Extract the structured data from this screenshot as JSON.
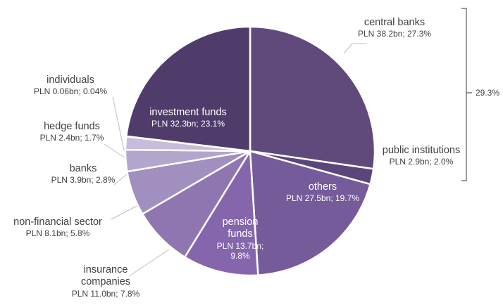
{
  "chart_data": {
    "type": "pie",
    "categories": [
      "central banks",
      "public institutions",
      "others",
      "pension funds",
      "insurance companies",
      "non-financial sector",
      "banks",
      "hedge funds",
      "individuals",
      "investment funds"
    ],
    "values": [
      27.3,
      2.0,
      19.7,
      9.8,
      7.8,
      5.8,
      2.8,
      1.7,
      0.04,
      23.1
    ],
    "value_labels": [
      "PLN 38.2bn; 27.3%",
      "PLN 2.9bn; 2.0%",
      "PLN 27.5bn; 19.7%",
      "PLN 13.7bn; 9.8%",
      "PLN 11.0bn; 7.8%",
      "PLN 8.1bn; 5.8%",
      "PLN 3.9bn; 2.8%",
      "PLN 2.4bn; 1.7%",
      "PLN 0.06bn; 0.04%",
      "PLN 32.3bn; 23.1%"
    ],
    "colors": [
      "#604a7b",
      "#5a467a",
      "#755b9a",
      "#8566ad",
      "#8f76b1",
      "#a08fbf",
      "#b3a6cc",
      "#c6bcdb",
      "#d5cce5",
      "#4f3c6b"
    ],
    "annotation": "29.3%"
  }
}
